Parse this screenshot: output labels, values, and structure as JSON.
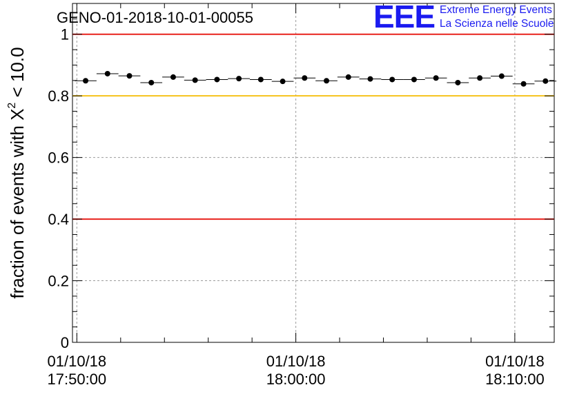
{
  "chart_data": {
    "type": "scatter",
    "title": "GENO-01-2018-10-01-00055",
    "ylabel_main": "fraction of events with ",
    "ylabel_chi": "X",
    "ylabel_sup": "2",
    "ylabel_rest": " < 10.0",
    "ylim": [
      0,
      1.1
    ],
    "xlim_minutes": [
      -0.2,
      21.8
    ],
    "yticks": [
      0,
      0.2,
      0.4,
      0.6,
      0.8,
      1
    ],
    "ytick_labels": [
      "0",
      "0.2",
      "0.4",
      "0.6",
      "0.8",
      "1"
    ],
    "xticks": [
      {
        "minute": 0,
        "date": "01/10/18",
        "time": "17:50:00"
      },
      {
        "minute": 10,
        "date": "01/10/18",
        "time": "18:00:00"
      },
      {
        "minute": 20,
        "date": "01/10/18",
        "time": "18:10:00"
      }
    ],
    "grid": true,
    "bin_width_minutes": 1,
    "series": [
      {
        "name": "fraction",
        "x_minutes": [
          0.4,
          1.4,
          2.4,
          3.4,
          4.4,
          5.4,
          6.4,
          7.4,
          8.4,
          9.4,
          10.4,
          11.4,
          12.4,
          13.4,
          14.4,
          15.4,
          16.4,
          17.4,
          18.4,
          19.4,
          20.4,
          21.4
        ],
        "values": [
          0.849,
          0.872,
          0.865,
          0.843,
          0.861,
          0.851,
          0.853,
          0.856,
          0.853,
          0.847,
          0.858,
          0.849,
          0.861,
          0.855,
          0.853,
          0.853,
          0.858,
          0.843,
          0.858,
          0.864,
          0.839,
          0.848
        ]
      }
    ],
    "reference_lines": [
      {
        "y": 1.0,
        "color": "#e8211b"
      },
      {
        "y": 0.8,
        "color": "#f6c21a"
      },
      {
        "y": 0.4,
        "color": "#e8211b"
      }
    ]
  },
  "logo": {
    "text": "EEE",
    "line1": "Extreme Energy Events",
    "line2": "La Scienza nelle Scuole",
    "color": "#1b1bf0"
  }
}
